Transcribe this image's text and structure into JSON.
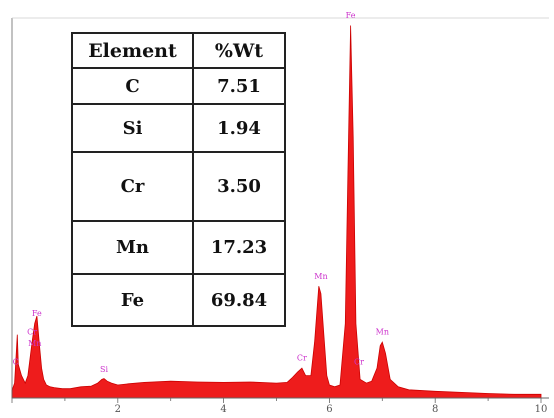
{
  "chart_data": {
    "type": "area",
    "title": "",
    "xlabel": "",
    "ylabel": "",
    "xlim": [
      0,
      10
    ],
    "x_ticks": [
      "2",
      "4",
      "6",
      "8",
      "10"
    ],
    "series": [
      {
        "x": [
          0.0,
          0.05,
          0.1,
          0.12,
          0.18,
          0.25,
          0.3,
          0.38,
          0.43,
          0.47,
          0.52,
          0.56,
          0.6,
          0.65,
          0.72,
          0.8,
          0.95,
          1.1,
          1.3,
          1.5,
          1.62,
          1.7,
          1.74,
          1.8,
          1.88,
          2.0,
          2.2,
          2.5,
          3.0,
          3.5,
          4.0,
          4.5,
          5.0,
          5.2,
          5.3,
          5.4,
          5.48,
          5.55,
          5.65,
          5.72,
          5.8,
          5.84,
          5.9,
          5.95,
          6.0,
          6.1,
          6.2,
          6.3,
          6.35,
          6.4,
          6.45,
          6.5,
          6.58,
          6.7,
          6.8,
          6.9,
          6.96,
          7.0,
          7.06,
          7.15,
          7.3,
          7.5,
          8.0,
          8.5,
          9.0,
          9.5,
          10.0
        ],
        "values": [
          2.0,
          4.0,
          17.0,
          9.0,
          6.0,
          4.0,
          6.0,
          15.0,
          20.0,
          22.0,
          14.0,
          8.0,
          5.0,
          3.5,
          3.0,
          2.8,
          2.5,
          2.5,
          3.0,
          3.2,
          4.0,
          5.0,
          5.2,
          4.5,
          4.0,
          3.5,
          3.8,
          4.2,
          4.5,
          4.3,
          4.2,
          4.3,
          4.0,
          4.2,
          5.5,
          7.0,
          8.0,
          6.0,
          6.0,
          15.0,
          30.0,
          28.0,
          16.0,
          6.0,
          3.5,
          3.0,
          3.5,
          20.0,
          60.0,
          100.0,
          70.0,
          20.0,
          5.0,
          4.0,
          4.5,
          8.0,
          14.0,
          15.0,
          12.0,
          5.0,
          3.0,
          2.2,
          1.8,
          1.5,
          1.2,
          1.0,
          1.0
        ]
      }
    ],
    "peak_labels": [
      {
        "text": "Fe",
        "x": 0.47,
        "y": 22
      },
      {
        "text": "Cr",
        "x": 0.38,
        "y": 17
      },
      {
        "text": "Mn",
        "x": 0.43,
        "y": 14
      },
      {
        "text": "C",
        "x": 0.07,
        "y": 9
      },
      {
        "text": "Si",
        "x": 1.74,
        "y": 7
      },
      {
        "text": "Cr",
        "x": 5.48,
        "y": 10
      },
      {
        "text": "Mn",
        "x": 5.84,
        "y": 32
      },
      {
        "text": "Fe",
        "x": 6.4,
        "y": 102
      },
      {
        "text": "Cr",
        "x": 6.56,
        "y": 9
      },
      {
        "text": "Mn",
        "x": 7.0,
        "y": 17
      }
    ],
    "table": {
      "headers": [
        "Element",
        "%Wt"
      ],
      "rows": [
        {
          "element": "C",
          "wt": "7.51"
        },
        {
          "element": "Si",
          "wt": "1.94"
        },
        {
          "element": "Cr",
          "wt": "3.50"
        },
        {
          "element": "Mn",
          "wt": "17.23"
        },
        {
          "element": "Fe",
          "wt": "69.84"
        }
      ]
    },
    "grid": false,
    "legend": "none"
  },
  "colors": {
    "fill": "#ee1c1c",
    "stroke": "#cc0000",
    "axis": "#666666",
    "peak_label": "#cc33cc"
  }
}
